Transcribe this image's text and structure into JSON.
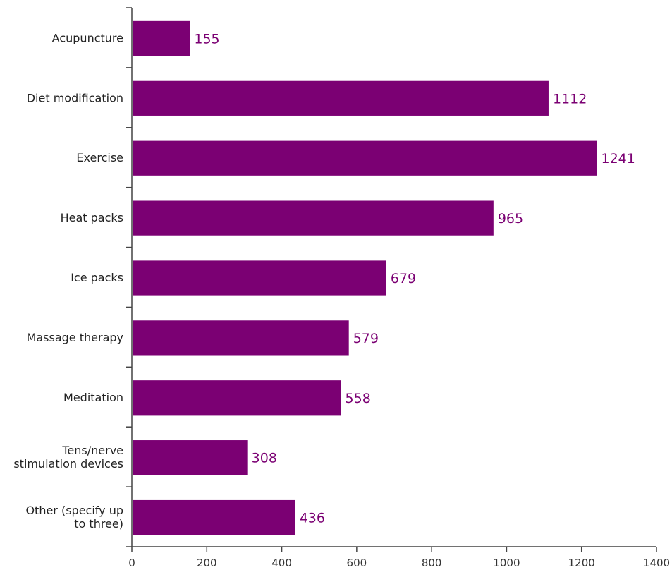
{
  "chart_data": {
    "type": "bar",
    "orientation": "horizontal",
    "categories": [
      [
        "Acupuncture"
      ],
      [
        "Diet modification"
      ],
      [
        "Exercise"
      ],
      [
        "Heat packs"
      ],
      [
        "Ice packs"
      ],
      [
        "Massage therapy"
      ],
      [
        "Meditation"
      ],
      [
        "Tens/nerve",
        "stimulation devices"
      ],
      [
        "Other (specify up",
        "to three)"
      ]
    ],
    "values": [
      155,
      1112,
      1241,
      965,
      679,
      579,
      558,
      308,
      436
    ],
    "xlim": [
      0,
      1400
    ],
    "xticks": [
      0,
      200,
      400,
      600,
      800,
      1000,
      1200,
      1400
    ],
    "title": "",
    "xlabel": "",
    "ylabel": "",
    "grid": false,
    "bar_color": "#7b0073",
    "label_color": "#7b0073",
    "data_labels": true
  }
}
